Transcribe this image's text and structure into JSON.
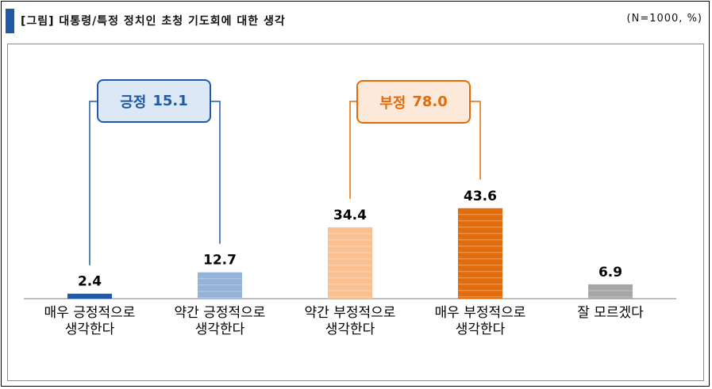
{
  "header": {
    "title": "[그림] 대통령/특정 정치인 초청 기도회에 대한 생각",
    "note": "(N=1000, %)"
  },
  "groups": [
    {
      "label": "긍정",
      "value": "15.1"
    },
    {
      "label": "부정",
      "value": "78.0"
    }
  ],
  "chart_data": {
    "type": "bar",
    "title": "[그림] 대통령/특정 정치인 초청 기도회에 대한 생각",
    "xlabel": "",
    "ylabel": "",
    "ylim": [
      0,
      60
    ],
    "grid": false,
    "legend": "none",
    "categories": [
      [
        "매우 긍정적으로",
        "생각한다"
      ],
      [
        "약간 긍정적으로",
        "생각한다"
      ],
      [
        "약간 부정적으로",
        "생각한다"
      ],
      [
        "매우 부정적으로",
        "생각한다"
      ],
      [
        "잘 모르겠다"
      ]
    ],
    "values": [
      2.4,
      12.7,
      34.4,
      43.6,
      6.9
    ],
    "colors": [
      "#1f5aa6",
      "#95b3d7",
      "#fac090",
      "#e36c0a",
      "#a6a6a6"
    ],
    "group_colors": [
      "#1f5aa6",
      "#e36c0a"
    ]
  }
}
